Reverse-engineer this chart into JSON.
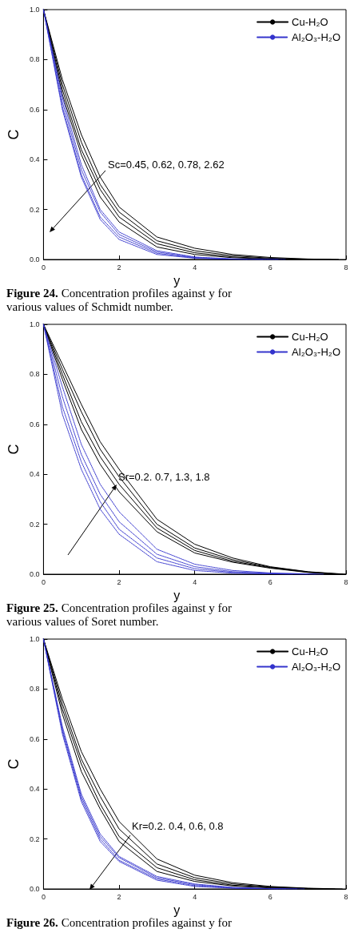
{
  "chart_data": [
    {
      "type": "line",
      "xlabel": "y",
      "ylabel": "C",
      "xlim": [
        0,
        8
      ],
      "xticks": [
        0,
        2,
        4,
        6,
        8
      ],
      "ylim": [
        0,
        1
      ],
      "yticks": [
        {
          "value": 0,
          "label": "0.0"
        },
        {
          "value": 0.2,
          "label": "0.2"
        },
        {
          "value": 0.4,
          "label": "0.4"
        },
        {
          "value": 0.6,
          "label": "0.6"
        },
        {
          "value": 0.8,
          "label": "0.8"
        },
        {
          "value": 1,
          "label": "1.0"
        }
      ],
      "legend": "top right",
      "marker": "none",
      "annotations": [
        "Sc=0.45, 0.62, 0.78, 2.62",
        "Figure 24. Concentration profiles against y for various values of Schmidt number."
      ],
      "series": [
        {
          "name": "Cu-H₂O",
          "color": "#000000",
          "line_style": "solid",
          "x": [
            0,
            0.5,
            1,
            1.5,
            2,
            3,
            4,
            5,
            6,
            7,
            7.8
          ],
          "values": [
            1,
            0.72,
            0.5,
            0.33,
            0.21,
            0.09,
            0.045,
            0.02,
            0.008,
            0.002,
            0
          ]
        },
        {
          "color": "#000000",
          "line_style": "solid",
          "x": [
            0,
            0.5,
            1,
            1.5,
            2,
            3,
            4,
            5,
            6,
            7,
            7.6
          ],
          "values": [
            1,
            0.7,
            0.47,
            0.3,
            0.19,
            0.075,
            0.035,
            0.015,
            0.005,
            0.001,
            0
          ]
        },
        {
          "color": "#000000",
          "line_style": "solid",
          "x": [
            0,
            0.5,
            1,
            1.5,
            2,
            3,
            4,
            5,
            6,
            7.2
          ],
          "values": [
            1,
            0.68,
            0.44,
            0.28,
            0.17,
            0.063,
            0.027,
            0.01,
            0.003,
            0
          ]
        },
        {
          "color": "#000000",
          "line_style": "solid",
          "x": [
            0,
            0.5,
            1,
            1.5,
            2,
            3,
            4,
            5,
            6,
            7
          ],
          "values": [
            1,
            0.66,
            0.42,
            0.25,
            0.15,
            0.05,
            0.02,
            0.007,
            0.002,
            0
          ]
        },
        {
          "name": "Al₂O₃-H₂O",
          "color": "#3333cc",
          "line_style": "dotted",
          "x": [
            0,
            0.5,
            1,
            1.5,
            2,
            3,
            4,
            5,
            6.4
          ],
          "values": [
            1,
            0.65,
            0.38,
            0.2,
            0.11,
            0.035,
            0.01,
            0.002,
            0
          ]
        },
        {
          "color": "#3333cc",
          "line_style": "dotted",
          "x": [
            0,
            0.5,
            1,
            1.5,
            2,
            3,
            4,
            5,
            6.2
          ],
          "values": [
            1,
            0.63,
            0.36,
            0.19,
            0.1,
            0.03,
            0.008,
            0.002,
            0
          ]
        },
        {
          "color": "#3333cc",
          "line_style": "dotted",
          "x": [
            0,
            0.5,
            1,
            1.5,
            2,
            3,
            4,
            5,
            5.8
          ],
          "values": [
            1,
            0.61,
            0.34,
            0.17,
            0.09,
            0.025,
            0.006,
            0.001,
            0
          ]
        },
        {
          "color": "#3333cc",
          "line_style": "dotted",
          "x": [
            0,
            0.5,
            1,
            1.5,
            2,
            3,
            4,
            5.4
          ],
          "values": [
            1,
            0.6,
            0.33,
            0.16,
            0.08,
            0.02,
            0.005,
            0
          ]
        }
      ]
    },
    {
      "type": "line",
      "xlabel": "y",
      "ylabel": "C",
      "xlim": [
        0,
        8
      ],
      "xticks": [
        0,
        2,
        4,
        6,
        8
      ],
      "ylim": [
        0,
        1
      ],
      "yticks": [
        {
          "value": 0,
          "label": "0.0"
        },
        {
          "value": 0.2,
          "label": "0.2"
        },
        {
          "value": 0.4,
          "label": "0.4"
        },
        {
          "value": 0.6,
          "label": "0.6"
        },
        {
          "value": 0.8,
          "label": "0.8"
        },
        {
          "value": 1,
          "label": "1.0"
        }
      ],
      "legend": "top right",
      "marker": "none",
      "annotations": [
        "Sr=0.2. 0.7, 1.3, 1.8",
        "Figure 25. Concentration profiles against y for various values of Soret number."
      ],
      "series": [
        {
          "name": "Cu-H₂O",
          "color": "#000000",
          "line_style": "solid",
          "x": [
            0,
            0.5,
            1,
            1.5,
            2,
            3,
            4,
            5,
            6,
            7,
            8
          ],
          "values": [
            1,
            0.84,
            0.68,
            0.53,
            0.42,
            0.22,
            0.12,
            0.065,
            0.03,
            0.01,
            0
          ]
        },
        {
          "color": "#000000",
          "line_style": "solid",
          "x": [
            0,
            0.5,
            1,
            1.5,
            2,
            3,
            4,
            5,
            6,
            7,
            7.9
          ],
          "values": [
            1,
            0.82,
            0.65,
            0.5,
            0.39,
            0.2,
            0.105,
            0.058,
            0.028,
            0.009,
            0
          ]
        },
        {
          "color": "#000000",
          "line_style": "solid",
          "x": [
            0,
            0.5,
            1,
            1.5,
            2,
            3,
            4,
            5,
            6,
            7,
            7.8
          ],
          "values": [
            1,
            0.8,
            0.61,
            0.47,
            0.36,
            0.185,
            0.095,
            0.052,
            0.026,
            0.008,
            0
          ]
        },
        {
          "color": "#000000",
          "line_style": "solid",
          "x": [
            0,
            0.5,
            1,
            1.5,
            2,
            3,
            4,
            5,
            6,
            7,
            7.7
          ],
          "values": [
            1,
            0.78,
            0.58,
            0.44,
            0.33,
            0.17,
            0.085,
            0.048,
            0.024,
            0.007,
            0
          ]
        },
        {
          "name": "Al₂O₃-H₂O",
          "color": "#3333cc",
          "line_style": "dotted",
          "x": [
            0,
            0.5,
            1,
            1.5,
            2,
            3,
            4,
            5,
            6,
            7.4
          ],
          "values": [
            1,
            0.75,
            0.52,
            0.36,
            0.25,
            0.1,
            0.04,
            0.015,
            0.005,
            0
          ]
        },
        {
          "color": "#3333cc",
          "line_style": "dotted",
          "x": [
            0,
            0.5,
            1,
            1.5,
            2,
            3,
            4,
            5,
            6,
            7.2
          ],
          "values": [
            1,
            0.71,
            0.48,
            0.32,
            0.21,
            0.08,
            0.03,
            0.01,
            0.003,
            0
          ]
        },
        {
          "color": "#3333cc",
          "line_style": "dotted",
          "x": [
            0,
            0.5,
            1,
            1.5,
            2,
            3,
            4,
            5,
            6,
            7
          ],
          "values": [
            1,
            0.67,
            0.45,
            0.29,
            0.18,
            0.065,
            0.022,
            0.007,
            0.002,
            0
          ]
        },
        {
          "color": "#3333cc",
          "line_style": "dotted",
          "x": [
            0,
            0.5,
            1,
            1.5,
            2,
            3,
            4,
            5,
            6.6
          ],
          "values": [
            1,
            0.64,
            0.42,
            0.26,
            0.16,
            0.05,
            0.015,
            0.004,
            0
          ]
        }
      ]
    },
    {
      "type": "line",
      "xlabel": "y",
      "ylabel": "C",
      "xlim": [
        0,
        8
      ],
      "xticks": [
        0,
        2,
        4,
        6,
        8
      ],
      "ylim": [
        0,
        1
      ],
      "yticks": [
        {
          "value": 0,
          "label": "0.0"
        },
        {
          "value": 0.2,
          "label": "0.2"
        },
        {
          "value": 0.4,
          "label": "0.4"
        },
        {
          "value": 0.6,
          "label": "0.6"
        },
        {
          "value": 0.8,
          "label": "0.8"
        },
        {
          "value": 1,
          "label": "1.0"
        }
      ],
      "legend": "top right",
      "marker": "none",
      "annotations": [
        "Kr=0.2. 0.4, 0.6, 0.8",
        "Figure 26. Concentration profiles against y for"
      ],
      "series": [
        {
          "name": "Cu-H₂O",
          "color": "#000000",
          "line_style": "solid",
          "x": [
            0,
            0.5,
            1,
            1.5,
            2,
            3,
            4,
            5,
            6,
            7,
            7.9
          ],
          "values": [
            1,
            0.76,
            0.55,
            0.4,
            0.27,
            0.12,
            0.055,
            0.025,
            0.01,
            0.003,
            0
          ]
        },
        {
          "color": "#000000",
          "line_style": "solid",
          "x": [
            0,
            0.5,
            1,
            1.5,
            2,
            3,
            4,
            5,
            6,
            7,
            7.7
          ],
          "values": [
            1,
            0.74,
            0.52,
            0.37,
            0.24,
            0.1,
            0.045,
            0.02,
            0.008,
            0.002,
            0
          ]
        },
        {
          "color": "#000000",
          "line_style": "solid",
          "x": [
            0,
            0.5,
            1,
            1.5,
            2,
            3,
            4,
            5,
            6,
            7,
            7.5
          ],
          "values": [
            1,
            0.72,
            0.5,
            0.34,
            0.21,
            0.085,
            0.037,
            0.015,
            0.006,
            0.001,
            0
          ]
        },
        {
          "color": "#000000",
          "line_style": "solid",
          "x": [
            0,
            0.5,
            1,
            1.5,
            2,
            3,
            4,
            5,
            6,
            7.1
          ],
          "values": [
            1,
            0.7,
            0.47,
            0.32,
            0.19,
            0.07,
            0.03,
            0.012,
            0.004,
            0
          ]
        },
        {
          "name": "Al₂O₃-H₂O",
          "color": "#3333cc",
          "line_style": "dotted",
          "x": [
            0,
            0.5,
            1,
            1.5,
            2,
            3,
            4,
            5,
            6,
            6.9
          ],
          "values": [
            1,
            0.65,
            0.38,
            0.22,
            0.13,
            0.05,
            0.02,
            0.006,
            0.001,
            0
          ]
        },
        {
          "color": "#3333cc",
          "line_style": "dotted",
          "x": [
            0,
            0.5,
            1,
            1.5,
            2,
            3,
            4,
            5,
            6,
            6.7
          ],
          "values": [
            1,
            0.64,
            0.37,
            0.21,
            0.125,
            0.045,
            0.017,
            0.005,
            0.001,
            0
          ]
        },
        {
          "color": "#3333cc",
          "line_style": "dotted",
          "x": [
            0,
            0.5,
            1,
            1.5,
            2,
            3,
            4,
            5,
            6.4
          ],
          "values": [
            1,
            0.63,
            0.36,
            0.2,
            0.115,
            0.04,
            0.013,
            0.004,
            0
          ]
        },
        {
          "color": "#3333cc",
          "line_style": "dotted",
          "x": [
            0,
            0.5,
            1,
            1.5,
            2,
            3,
            4,
            5,
            6.2
          ],
          "values": [
            1,
            0.62,
            0.35,
            0.19,
            0.11,
            0.035,
            0.01,
            0.003,
            0
          ]
        }
      ]
    }
  ]
}
